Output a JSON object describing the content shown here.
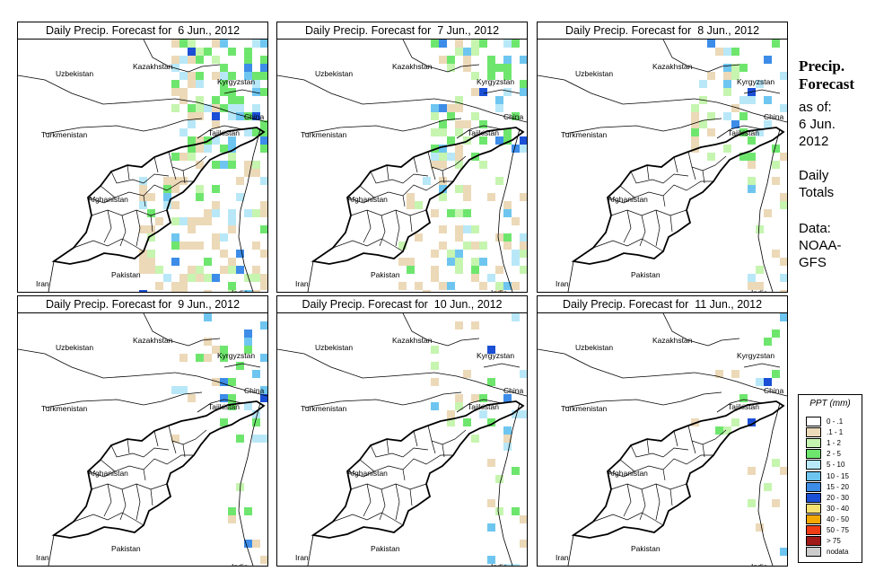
{
  "panels": [
    {
      "title": "Daily Precip. Forecast for  6 Jun., 2012"
    },
    {
      "title": "Daily Precip. Forecast for  7 Jun., 2012"
    },
    {
      "title": "Daily Precip. Forecast for  8 Jun., 2012"
    },
    {
      "title": "Daily Precip. Forecast for  9 Jun., 2012"
    },
    {
      "title": "Daily Precip. Forecast for  10 Jun., 2012"
    },
    {
      "title": "Daily Precip. Forecast for  11 Jun., 2012"
    }
  ],
  "countries": {
    "uzbekistan": "Uzbekistan",
    "kazakhstan": "Kazakhstan",
    "kyrgyzstan": "Kyrgyzstan",
    "turkmenistan": "Turkmenistan",
    "tajikistan": "Tajikistan",
    "china": "China",
    "afghanistan": "Afghanistan",
    "pakistan": "Pakistan",
    "iran": "Iran",
    "india": "India"
  },
  "sidebar": {
    "heading_line1": "Precip.",
    "heading_line2": "Forecast",
    "asof_line1": "as of:",
    "asof_line2": "6 Jun.",
    "asof_line3": "2012",
    "totals_line1": "Daily",
    "totals_line2": "Totals",
    "source_line1": "Data:",
    "source_line2": "NOAA-",
    "source_line3": "GFS"
  },
  "legend": {
    "title": "PPT (mm)",
    "classes": [
      {
        "label": "0 - .1",
        "color": "#ffffff"
      },
      {
        "label": ".1 - 1",
        "color": "#ecd9b8"
      },
      {
        "label": "1 - 2",
        "color": "#c6f5b0"
      },
      {
        "label": "2 - 5",
        "color": "#6ee66e"
      },
      {
        "label": "5 - 10",
        "color": "#b8e8f8"
      },
      {
        "label": "10 - 15",
        "color": "#6ec6f0"
      },
      {
        "label": "15 - 20",
        "color": "#3c8ce8"
      },
      {
        "label": "20 - 30",
        "color": "#1a4fd6"
      },
      {
        "label": "30 - 40",
        "color": "#f5e070"
      },
      {
        "label": "40 - 50",
        "color": "#f5a800"
      },
      {
        "label": "50 - 75",
        "color": "#f03c14"
      },
      {
        "label": "> 75",
        "color": "#a01818"
      },
      {
        "label": "nodata",
        "color": "#cccccc"
      }
    ]
  }
}
